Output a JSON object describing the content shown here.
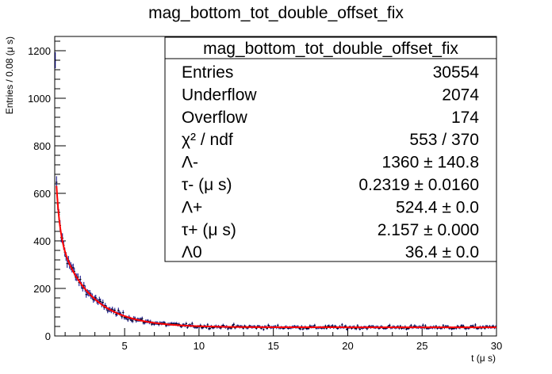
{
  "chart_data": {
    "type": "scatter",
    "title": "mag_bottom_tot_double_offset_fix",
    "xlabel": "t (μ s)",
    "ylabel": "Entries / 0.08 (μ s)",
    "xlim": [
      0.3,
      30
    ],
    "ylim": [
      0,
      1260
    ],
    "x_ticks": [
      5,
      10,
      15,
      20,
      25,
      30
    ],
    "y_ticks": [
      0,
      200,
      400,
      600,
      800,
      1000,
      1200
    ],
    "bin_width": 0.08,
    "series": [],
    "points_sample": [
      {
        "x": 0.34,
        "y": 1160
      },
      {
        "x": 0.42,
        "y": 800
      },
      {
        "x": 0.5,
        "y": 760
      },
      {
        "x": 0.6,
        "y": 690
      },
      {
        "x": 0.8,
        "y": 560
      },
      {
        "x": 1.0,
        "y": 470
      },
      {
        "x": 1.5,
        "y": 350
      },
      {
        "x": 2.0,
        "y": 285
      },
      {
        "x": 3.0,
        "y": 200
      },
      {
        "x": 4.0,
        "y": 135
      },
      {
        "x": 5.0,
        "y": 95
      },
      {
        "x": 7.0,
        "y": 60
      },
      {
        "x": 10.0,
        "y": 45
      },
      {
        "x": 15.0,
        "y": 38
      },
      {
        "x": 20.0,
        "y": 36
      },
      {
        "x": 25.0,
        "y": 37
      },
      {
        "x": 30.0,
        "y": 38
      }
    ],
    "fit": {
      "color": "#ff0000",
      "lambda_minus": 1360,
      "tau_minus": 0.2319,
      "lambda_plus": 524.4,
      "tau_plus": 2.157,
      "lambda_0": 36.4
    },
    "point_color": "#000080",
    "grid": false,
    "stats_box": {
      "title": "mag_bottom_tot_double_offset_fix",
      "rows": [
        {
          "label": "Entries",
          "value": "30554"
        },
        {
          "label": "Underflow",
          "value": "2074"
        },
        {
          "label": "Overflow",
          "value": "174"
        },
        {
          "label": "χ² / ndf",
          "value": "553 / 370"
        },
        {
          "label": "Λ-",
          "value": "1360 ± 140.8"
        },
        {
          "label": "τ- (μ s)",
          "value": "0.2319 ± 0.0160"
        },
        {
          "label": "Λ+",
          "value": "524.4 ± 0.0"
        },
        {
          "label": "τ+ (μ s)",
          "value": "2.157 ± 0.000"
        },
        {
          "label": "Λ0",
          "value": "36.4 ± 0.0"
        }
      ]
    }
  }
}
